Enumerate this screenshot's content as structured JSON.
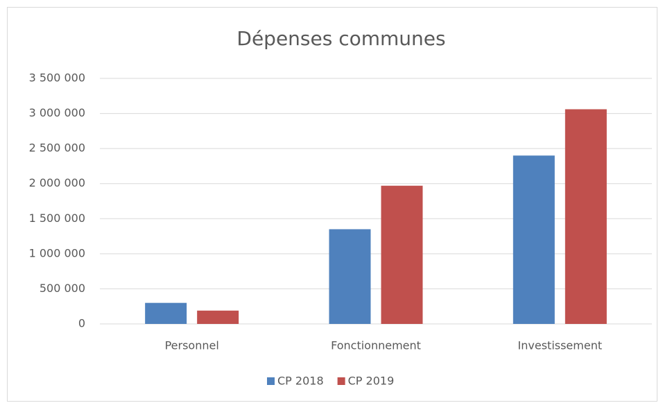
{
  "chart_data": {
    "type": "bar",
    "title": "Dépenses communes",
    "categories": [
      "Personnel",
      "Fonctionnement",
      "Investissement"
    ],
    "series": [
      {
        "name": "CP 2018",
        "color": "#4f81bd",
        "values": [
          300000,
          1350000,
          2400000
        ]
      },
      {
        "name": "CP 2019",
        "color": "#c0504d",
        "values": [
          190000,
          1970000,
          3060000
        ]
      }
    ],
    "ylim": [
      0,
      3500000
    ],
    "yticks": [
      0,
      {
        "value": 500000,
        "label": "500 000"
      },
      {
        "value": 1000000,
        "label": "1 000 000"
      },
      {
        "value": 1500000,
        "label": "1 500 000"
      },
      {
        "value": 2000000,
        "label": "2 000 000"
      },
      {
        "value": 2500000,
        "label": "2 500 000"
      },
      {
        "value": 3000000,
        "label": "3 000 000"
      },
      {
        "value": 3500000,
        "label": "3 500 000"
      }
    ],
    "grid": true,
    "legend": "bottom"
  }
}
